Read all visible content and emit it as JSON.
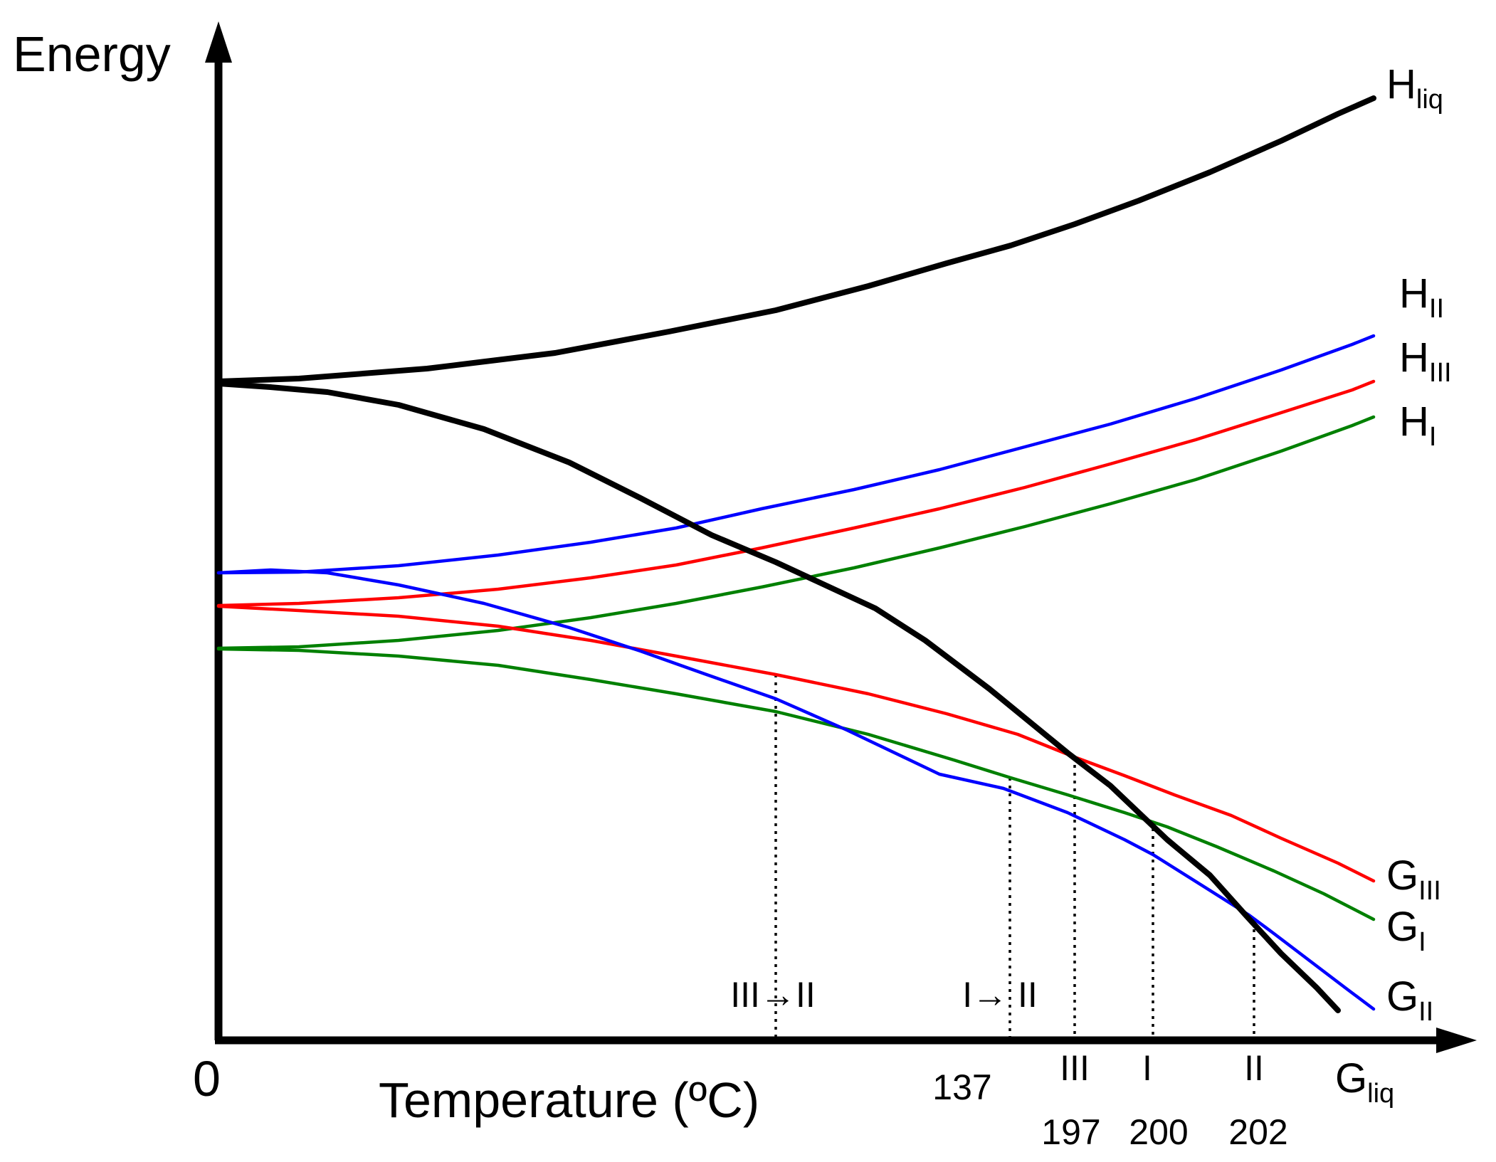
{
  "chart_data": {
    "type": "line",
    "title": "",
    "ylabel": "Energy",
    "xlabel": "Temperature (ºC)",
    "origin_label": "0",
    "colors": {
      "liq": "#000000",
      "II": "#0000ff",
      "III": "#ff0000",
      "I": "#008000"
    },
    "series": [
      {
        "name": "H_liq",
        "label_main": "H",
        "label_sub": "liq",
        "color": "#000000"
      },
      {
        "name": "H_II",
        "label_main": "H",
        "label_sub": "II",
        "color": "#0000ff"
      },
      {
        "name": "H_III",
        "label_main": "H",
        "label_sub": "III",
        "color": "#ff0000"
      },
      {
        "name": "H_I",
        "label_main": "H",
        "label_sub": "I",
        "color": "#008000"
      },
      {
        "name": "G_III",
        "label_main": "G",
        "label_sub": "III",
        "color": "#ff0000"
      },
      {
        "name": "G_I",
        "label_main": "G",
        "label_sub": "I",
        "color": "#008000"
      },
      {
        "name": "G_II",
        "label_main": "G",
        "label_sub": "II",
        "color": "#0000ff"
      },
      {
        "name": "G_liq",
        "label_main": "G",
        "label_sub": "liq",
        "color": "#000000"
      }
    ],
    "transitions": [
      {
        "label": "III→II"
      },
      {
        "label": "I→ II",
        "temperature": "137"
      },
      {
        "label": "III",
        "temperature": "197"
      },
      {
        "label": "I",
        "temperature": "200"
      },
      {
        "label": "II",
        "temperature": "202"
      }
    ]
  }
}
